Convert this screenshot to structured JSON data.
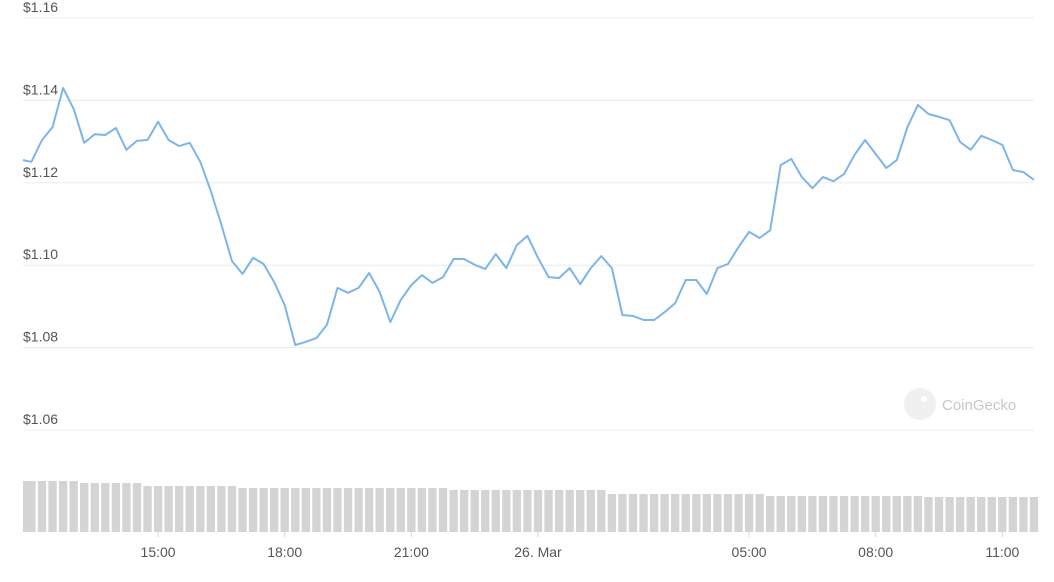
{
  "chart_data": {
    "type": "line",
    "color": "#7cb5ec",
    "volume_color": "#d4d4d4",
    "watermark": "CoinGecko",
    "grid": true,
    "xlim": [
      11.8,
      35.75
    ],
    "xticks": [
      {
        "value": 15,
        "label": "15:00"
      },
      {
        "value": 18,
        "label": "18:00"
      },
      {
        "value": 21,
        "label": "21:00"
      },
      {
        "value": 24,
        "label": "26. Mar"
      },
      {
        "value": 29,
        "label": "05:00"
      },
      {
        "value": 32,
        "label": "08:00"
      },
      {
        "value": 35,
        "label": "11:00"
      }
    ],
    "ylim": [
      1.06,
      1.16
    ],
    "yticks": [
      {
        "value": 1.06,
        "label": "$1.06"
      },
      {
        "value": 1.08,
        "label": "$1.08"
      },
      {
        "value": 1.1,
        "label": "$1.10"
      },
      {
        "value": 1.12,
        "label": "$1.12"
      },
      {
        "value": 1.14,
        "label": "$1.14"
      },
      {
        "value": 1.16,
        "label": "$1.16"
      }
    ],
    "y2lim": [
      0,
      60
    ],
    "x": [
      11.8,
      12.0,
      12.25,
      12.5,
      12.75,
      13.0,
      13.25,
      13.5,
      13.75,
      14.0,
      14.25,
      14.5,
      14.75,
      15.0,
      15.25,
      15.5,
      15.75,
      16.0,
      16.25,
      16.5,
      16.75,
      17.0,
      17.25,
      17.5,
      17.75,
      18.0,
      18.25,
      18.5,
      18.75,
      19.0,
      19.25,
      19.5,
      19.75,
      20.0,
      20.25,
      20.5,
      20.75,
      21.0,
      21.25,
      21.5,
      21.75,
      22.0,
      22.25,
      22.5,
      22.75,
      23.0,
      23.25,
      23.5,
      23.75,
      24.0,
      24.25,
      24.5,
      24.75,
      25.0,
      25.25,
      25.5,
      25.75,
      26.0,
      26.25,
      26.5,
      26.75,
      27.0,
      27.25,
      27.5,
      27.75,
      28.0,
      28.25,
      28.5,
      28.75,
      29.0,
      29.25,
      29.5,
      29.75,
      30.0,
      30.25,
      30.5,
      30.75,
      31.0,
      31.25,
      31.5,
      31.75,
      32.0,
      32.25,
      32.5,
      32.75,
      33.0,
      33.25,
      33.5,
      33.75,
      34.0,
      34.25,
      34.5,
      34.75,
      35.0,
      35.25,
      35.5,
      35.75
    ],
    "values": [
      1.1255,
      1.1251,
      1.1304,
      1.1335,
      1.143,
      1.1379,
      1.1297,
      1.1318,
      1.1316,
      1.1333,
      1.128,
      1.1302,
      1.1304,
      1.1348,
      1.1304,
      1.1289,
      1.1297,
      1.1251,
      1.118,
      1.1098,
      1.101,
      1.0979,
      1.1018,
      1.1003,
      1.0959,
      1.0903,
      1.0806,
      1.0814,
      1.0823,
      1.0855,
      1.0945,
      1.0933,
      1.0945,
      1.0981,
      1.0935,
      1.0862,
      1.0916,
      1.0952,
      1.0976,
      1.0957,
      1.0971,
      1.1015,
      1.1015,
      1.1001,
      1.0991,
      1.1027,
      1.0993,
      1.1049,
      1.1071,
      1.1018,
      1.0971,
      1.0969,
      1.0993,
      1.0954,
      1.0993,
      1.1022,
      1.0993,
      1.0879,
      1.0877,
      1.0867,
      1.0867,
      1.0886,
      1.0908,
      1.0964,
      1.0964,
      1.093,
      1.0993,
      1.1003,
      1.1044,
      1.1081,
      1.1066,
      1.1085,
      1.1243,
      1.1258,
      1.1214,
      1.1187,
      1.1214,
      1.1204,
      1.1221,
      1.1268,
      1.1304,
      1.127,
      1.1236,
      1.1255,
      1.1335,
      1.1389,
      1.1367,
      1.136,
      1.1352,
      1.1299,
      1.128,
      1.1314,
      1.1304,
      1.1292,
      1.1231,
      1.1226,
      1.1207
    ],
    "volume": [
      51,
      51,
      51,
      51,
      51,
      51,
      49,
      49,
      49,
      49,
      49,
      49,
      46,
      46,
      46,
      46,
      46,
      46,
      46,
      46,
      46,
      44,
      44,
      44,
      44,
      44,
      44,
      44,
      44,
      44,
      44,
      44,
      44,
      44,
      44,
      44,
      44,
      44,
      44,
      44,
      44,
      42,
      42,
      42,
      42,
      42,
      42,
      42,
      42,
      42,
      42,
      42,
      42,
      42,
      42,
      42,
      38,
      38,
      38,
      38,
      38,
      38,
      38,
      38,
      38,
      38,
      38,
      38,
      38,
      38,
      38,
      36,
      36,
      36,
      36,
      36,
      36,
      36,
      36,
      36,
      36,
      36,
      36,
      36,
      36,
      36,
      35,
      35,
      35,
      35,
      35,
      35,
      35,
      35,
      35,
      35,
      35
    ]
  }
}
